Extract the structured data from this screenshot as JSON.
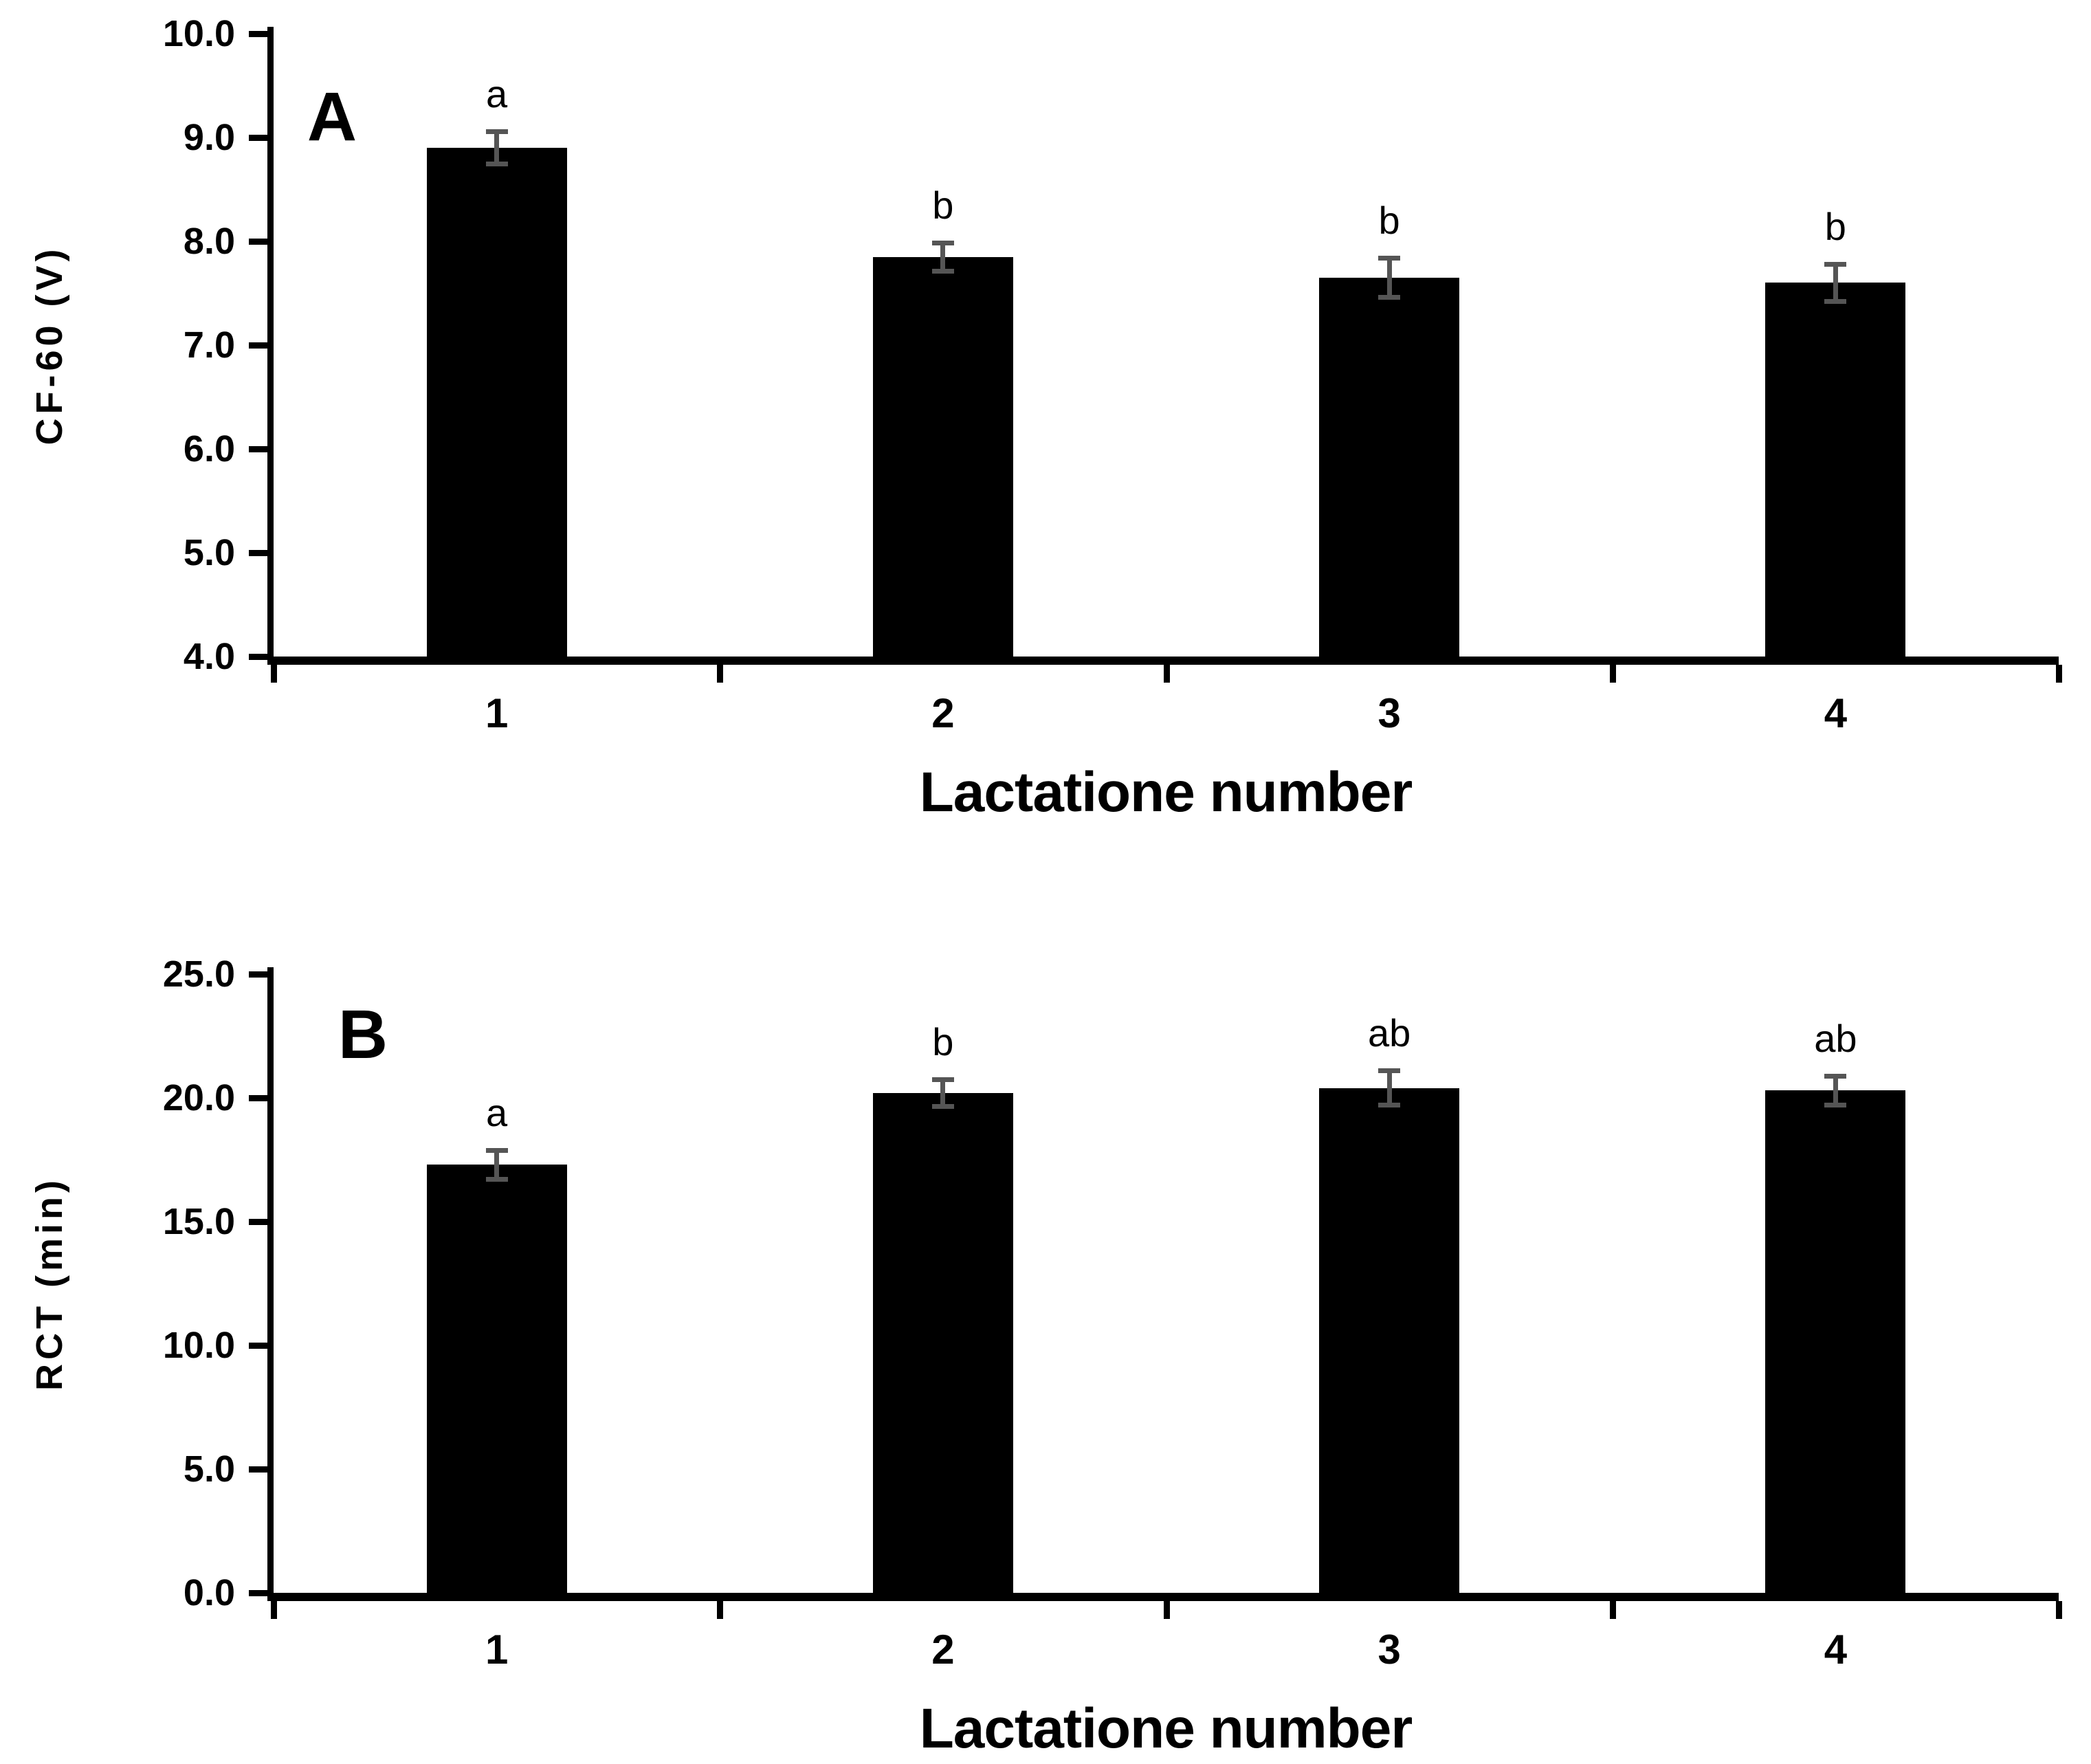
{
  "background": "#ffffff",
  "chart_data": [
    {
      "type": "bar",
      "panel_label": "A",
      "title": "",
      "xlabel": "Lactatione number",
      "ylabel": "CF-60 (V)",
      "categories": [
        "1",
        "2",
        "3",
        "4"
      ],
      "values": [
        8.9,
        7.85,
        7.65,
        7.6
      ],
      "errors": [
        0.16,
        0.14,
        0.19,
        0.18
      ],
      "sig_letters": [
        "a",
        "b",
        "b",
        "b"
      ],
      "ylim": [
        4.0,
        10.0
      ],
      "ytick_step": 1.0,
      "ytick_labels": [
        "4.0",
        "5.0",
        "6.0",
        "7.0",
        "8.0",
        "9.0",
        "10.0"
      ],
      "bar_color": "#000000",
      "error_color": "#555555",
      "grid": false,
      "legend_position": "none"
    },
    {
      "type": "bar",
      "panel_label": "B",
      "title": "",
      "xlabel": "Lactatione number",
      "ylabel": "RCT (min)",
      "categories": [
        "1",
        "2",
        "3",
        "4"
      ],
      "values": [
        17.3,
        20.2,
        20.4,
        20.3
      ],
      "errors": [
        0.6,
        0.55,
        0.7,
        0.6
      ],
      "sig_letters": [
        "a",
        "b",
        "ab",
        "ab"
      ],
      "ylim": [
        0.0,
        25.0
      ],
      "ytick_step": 5.0,
      "ytick_labels": [
        "0.0",
        "5.0",
        "10.0",
        "15.0",
        "20.0",
        "25.0"
      ],
      "bar_color": "#000000",
      "error_color": "#555555",
      "grid": false,
      "legend_position": "none"
    }
  ]
}
